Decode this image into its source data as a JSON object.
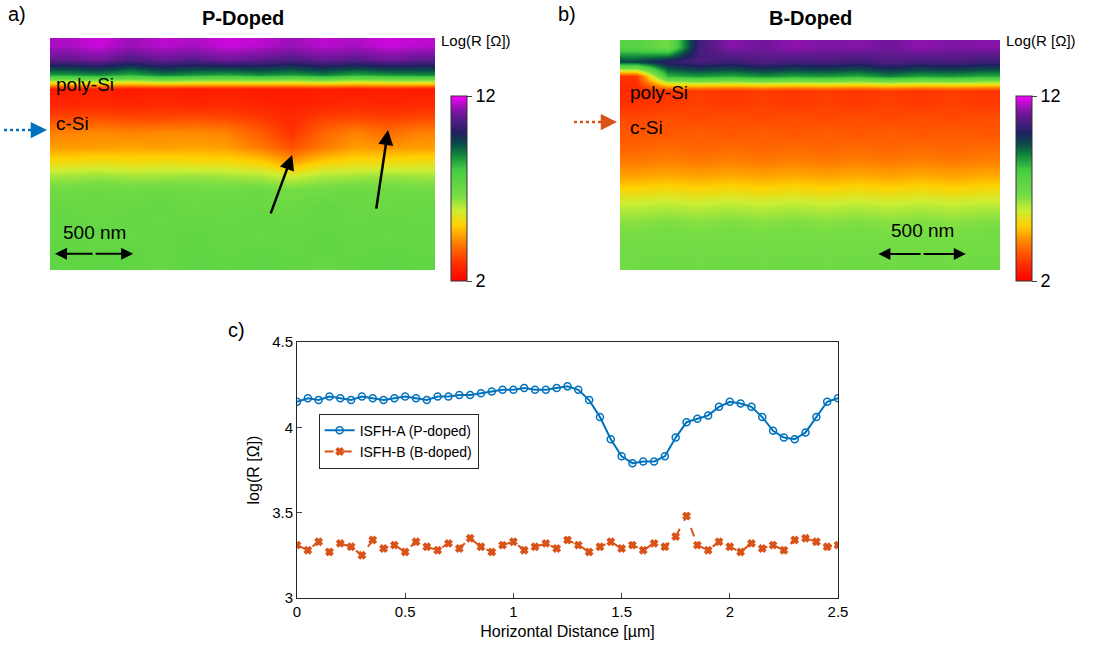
{
  "chart_data": [
    {
      "type": "heatmap",
      "panel": "a)",
      "title": "P-Doped",
      "tick_labels": false,
      "color": "#0072BD",
      "colorbar_title": "Log(R [Ω])",
      "zlim": [
        2,
        12
      ],
      "zticks": [
        2,
        12
      ],
      "annotations": [
        "poly-Si",
        "c-Si",
        "500 nm"
      ],
      "cells": [
        [
          11.5,
          11.7,
          11.4,
          11.6,
          11.5,
          11.7,
          11.6,
          11.4,
          11.6,
          11.5,
          11.7,
          11.6
        ],
        [
          10.8,
          11.0,
          10.6,
          10.9,
          10.7,
          11.0,
          10.8,
          10.6,
          10.9,
          10.7,
          11.0,
          10.8
        ],
        [
          8.6,
          8.8,
          8.4,
          8.9,
          8.7,
          8.5,
          8.8,
          8.6,
          8.9,
          8.5,
          8.7,
          8.8
        ],
        [
          2.5,
          2.6,
          2.5,
          2.6,
          2.5,
          2.6,
          2.5,
          2.5,
          2.6,
          2.5,
          2.6,
          2.5
        ],
        [
          2.7,
          2.8,
          2.7,
          2.8,
          2.7,
          2.8,
          2.7,
          2.6,
          2.7,
          2.8,
          2.7,
          2.8
        ],
        [
          3.3,
          3.4,
          3.3,
          3.3,
          3.4,
          3.3,
          3.1,
          2.8,
          3.2,
          3.3,
          3.2,
          3.3
        ],
        [
          4.1,
          4.2,
          4.1,
          4.2,
          4.2,
          4.1,
          3.6,
          3.0,
          3.7,
          4.1,
          3.8,
          4.1
        ],
        [
          4.4,
          4.4,
          4.5,
          4.4,
          4.5,
          4.4,
          4.0,
          3.4,
          4.0,
          4.4,
          4.3,
          4.4
        ],
        [
          5.2,
          5.3,
          5.2,
          5.3,
          5.2,
          5.2,
          5.0,
          4.4,
          5.0,
          5.2,
          5.2,
          5.3
        ],
        [
          6.2,
          6.3,
          6.2,
          6.2,
          6.3,
          6.2,
          6.1,
          5.8,
          6.1,
          6.2,
          6.3,
          6.2
        ],
        [
          6.8,
          6.9,
          6.8,
          6.9,
          6.8,
          6.8,
          6.9,
          6.7,
          6.8,
          6.9,
          6.8,
          6.8
        ],
        [
          7.0,
          6.9,
          7.0,
          7.1,
          6.9,
          7.0,
          7.0,
          6.9,
          7.1,
          7.0,
          6.9,
          7.0
        ],
        [
          7.1,
          7.0,
          7.1,
          7.0,
          7.1,
          7.0,
          7.1,
          7.0,
          7.1,
          7.0,
          7.1,
          7.0
        ],
        [
          7.1,
          7.2,
          7.0,
          7.1,
          7.2,
          7.1,
          7.0,
          7.1,
          7.2,
          7.1,
          7.0,
          7.1
        ],
        [
          7.2,
          7.1,
          7.2,
          7.1,
          7.2,
          7.1,
          7.2,
          7.1,
          7.2,
          7.1,
          7.2,
          7.1
        ],
        [
          7.2,
          7.3,
          7.2,
          7.1,
          7.3,
          7.2,
          7.3,
          7.2,
          7.1,
          7.2,
          7.3,
          7.2
        ]
      ]
    },
    {
      "type": "heatmap",
      "panel": "b)",
      "title": "B-Doped",
      "tick_labels": false,
      "color": "#D95319",
      "colorbar_title": "Log(R [Ω])",
      "zlim": [
        2,
        12
      ],
      "zticks": [
        2,
        12
      ],
      "annotations": [
        "poly-Si",
        "c-Si",
        "500 nm"
      ],
      "cells": [
        [
          7.5,
          6.8,
          10.5,
          11.2,
          11.0,
          11.3,
          11.1,
          11.2,
          11.0,
          11.3,
          11.1,
          11.2
        ],
        [
          9.5,
          10.2,
          10.6,
          10.4,
          10.7,
          10.5,
          10.6,
          10.4,
          10.7,
          10.5,
          10.6,
          10.4
        ],
        [
          3.0,
          8.3,
          8.6,
          8.4,
          8.7,
          8.5,
          8.6,
          8.4,
          8.8,
          8.5,
          8.6,
          8.4
        ],
        [
          2.8,
          3.0,
          3.1,
          3.0,
          3.1,
          3.0,
          3.1,
          3.0,
          3.1,
          3.0,
          3.1,
          3.0
        ],
        [
          3.0,
          3.1,
          3.2,
          3.1,
          3.2,
          3.1,
          3.2,
          3.1,
          3.2,
          3.1,
          3.2,
          3.1
        ],
        [
          3.3,
          3.4,
          3.3,
          3.4,
          3.3,
          3.4,
          3.3,
          3.4,
          3.3,
          3.4,
          3.3,
          3.4
        ],
        [
          3.5,
          3.5,
          3.6,
          3.5,
          3.6,
          3.5,
          3.6,
          3.5,
          3.6,
          3.5,
          3.6,
          3.5
        ],
        [
          3.7,
          3.8,
          3.7,
          3.8,
          3.7,
          3.8,
          3.7,
          3.8,
          3.7,
          3.8,
          3.7,
          3.8
        ],
        [
          4.0,
          4.1,
          4.0,
          4.1,
          4.0,
          4.1,
          4.0,
          4.1,
          4.0,
          4.1,
          4.0,
          4.1
        ],
        [
          4.5,
          4.6,
          4.5,
          4.6,
          4.5,
          4.6,
          4.5,
          4.6,
          4.5,
          4.6,
          4.5,
          4.6
        ],
        [
          5.2,
          5.3,
          5.2,
          5.3,
          5.2,
          5.3,
          5.2,
          5.3,
          5.2,
          5.3,
          5.2,
          5.3
        ],
        [
          5.9,
          6.0,
          5.9,
          6.0,
          5.9,
          6.0,
          5.9,
          6.0,
          5.9,
          6.0,
          5.9,
          6.0
        ],
        [
          6.4,
          6.5,
          6.4,
          6.5,
          6.4,
          6.5,
          6.4,
          6.5,
          6.4,
          6.5,
          6.4,
          6.5
        ],
        [
          6.6,
          6.7,
          6.6,
          6.7,
          6.6,
          6.7,
          6.6,
          6.7,
          6.6,
          6.7,
          6.6,
          6.7
        ],
        [
          6.8,
          6.7,
          6.8,
          6.7,
          6.8,
          6.7,
          6.8,
          6.7,
          6.8,
          6.7,
          6.8,
          6.7
        ],
        [
          6.8,
          6.9,
          6.8,
          6.9,
          6.8,
          6.9,
          6.8,
          6.9,
          6.8,
          6.9,
          6.8,
          6.9
        ]
      ]
    },
    {
      "type": "line",
      "panel": "c)",
      "x_label": "Horizontal Distance [µm]",
      "y_label": "log(R [Ω])",
      "xlim": [
        0,
        2.5
      ],
      "xticks": [
        0,
        0.5,
        1,
        1.5,
        2,
        2.5
      ],
      "ylim": [
        3,
        4.5
      ],
      "yticks": [
        3,
        3.5,
        4,
        4.5
      ],
      "grid": false,
      "legend": "upper left",
      "x": [
        0,
        0.05,
        0.1,
        0.15,
        0.2,
        0.25,
        0.3,
        0.35,
        0.4,
        0.45,
        0.5,
        0.55,
        0.6,
        0.65,
        0.7,
        0.75,
        0.8,
        0.85,
        0.9,
        0.95,
        1,
        1.05,
        1.1,
        1.15,
        1.2,
        1.25,
        1.3,
        1.35,
        1.4,
        1.45,
        1.5,
        1.55,
        1.6,
        1.65,
        1.7,
        1.75,
        1.8,
        1.85,
        1.9,
        1.95,
        2,
        2.05,
        2.1,
        2.15,
        2.2,
        2.25,
        2.3,
        2.35,
        2.4,
        2.45,
        2.5
      ],
      "series": [
        {
          "name": "ISFH-A (P-doped)",
          "color": "#0072BD",
          "marker": "circle-open",
          "line_style": "solid",
          "values": [
            4.15,
            4.17,
            4.16,
            4.18,
            4.17,
            4.16,
            4.18,
            4.17,
            4.16,
            4.17,
            4.18,
            4.17,
            4.16,
            4.18,
            4.18,
            4.19,
            4.19,
            4.2,
            4.21,
            4.22,
            4.22,
            4.23,
            4.22,
            4.22,
            4.23,
            4.24,
            4.22,
            4.16,
            4.06,
            3.93,
            3.83,
            3.79,
            3.8,
            3.8,
            3.83,
            3.94,
            4.03,
            4.05,
            4.07,
            4.12,
            4.15,
            4.14,
            4.12,
            4.06,
            3.98,
            3.94,
            3.93,
            3.97,
            4.06,
            4.15,
            4.17
          ]
        },
        {
          "name": "ISFH-B (B-doped)",
          "color": "#D95319",
          "marker": "x",
          "line_style": "dash",
          "values": [
            3.31,
            3.28,
            3.33,
            3.27,
            3.32,
            3.3,
            3.25,
            3.34,
            3.29,
            3.31,
            3.27,
            3.33,
            3.3,
            3.28,
            3.32,
            3.29,
            3.35,
            3.3,
            3.27,
            3.31,
            3.33,
            3.28,
            3.3,
            3.32,
            3.29,
            3.34,
            3.31,
            3.27,
            3.3,
            3.33,
            3.29,
            3.31,
            3.28,
            3.32,
            3.3,
            3.36,
            3.48,
            3.31,
            3.28,
            3.33,
            3.3,
            3.27,
            3.32,
            3.29,
            3.31,
            3.28,
            3.34,
            3.35,
            3.33,
            3.3,
            3.31
          ]
        }
      ]
    }
  ]
}
